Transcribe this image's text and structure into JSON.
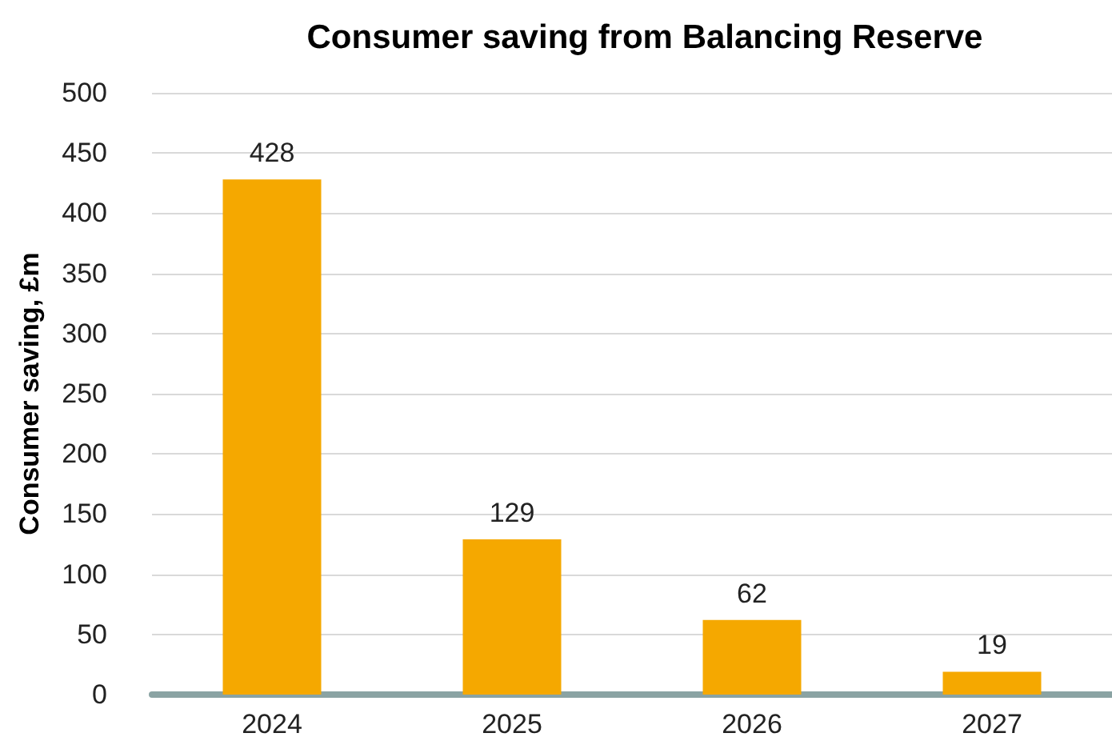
{
  "chart_data": {
    "type": "bar",
    "title": "Consumer saving from Balancing Reserve",
    "ylabel": "Consumer saving, £m",
    "categories": [
      "2024",
      "2025",
      "2026",
      "2027"
    ],
    "values": [
      428,
      129,
      62,
      19
    ],
    "color": "#f5a800",
    "ylim": [
      0,
      500
    ],
    "yticks": [
      0,
      50,
      100,
      150,
      200,
      250,
      300,
      350,
      400,
      450,
      500
    ],
    "grid": "y",
    "data_labels": true
  }
}
